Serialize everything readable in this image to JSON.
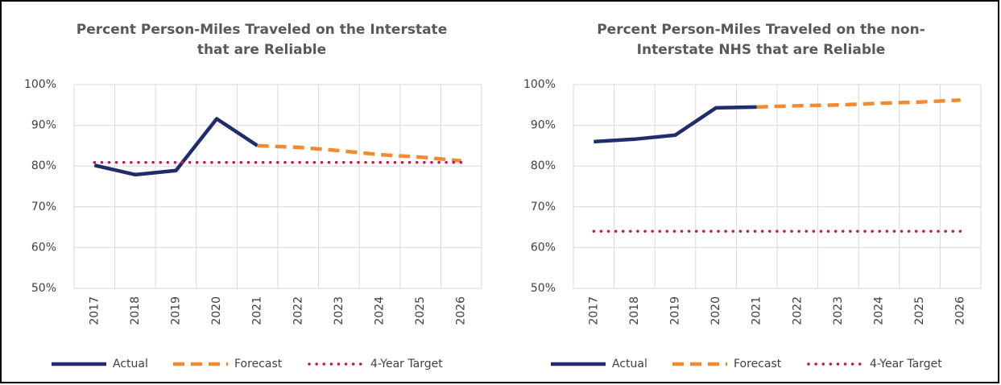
{
  "chart_data": [
    {
      "type": "line",
      "title": [
        "Percent Person-Miles Traveled on the Interstate",
        "that are Reliable"
      ],
      "categories": [
        "2017",
        "2018",
        "2019",
        "2020",
        "2021",
        "2022",
        "2023",
        "2024",
        "2025",
        "2026"
      ],
      "series": [
        {
          "name": "Actual",
          "color": "#1f2d6e",
          "style": "solid",
          "values": [
            80.2,
            77.9,
            78.9,
            91.6,
            85.0,
            null,
            null,
            null,
            null,
            null
          ]
        },
        {
          "name": "Forecast",
          "color": "#f28a30",
          "style": "dashed",
          "values": [
            null,
            null,
            null,
            null,
            85.0,
            84.6,
            83.8,
            82.8,
            82.2,
            81.3
          ]
        },
        {
          "name": "4-Year Target",
          "color": "#c8154a",
          "style": "dotted",
          "values": [
            80.9,
            80.9,
            80.9,
            80.9,
            80.9,
            80.9,
            80.9,
            80.9,
            80.9,
            80.9
          ]
        }
      ],
      "ylim": [
        50,
        100
      ],
      "yticks": [
        {
          "value": 50,
          "label": "50%"
        },
        {
          "value": 60,
          "label": "60%"
        },
        {
          "value": 70,
          "label": "70%"
        },
        {
          "value": 80,
          "label": "80%"
        },
        {
          "value": 90,
          "label": "90%"
        },
        {
          "value": 100,
          "label": "100%"
        }
      ],
      "grid": true,
      "legend": "bottom"
    },
    {
      "type": "line",
      "title": [
        "Percent Person-Miles Traveled on the non-",
        "Interstate NHS that are Reliable"
      ],
      "categories": [
        "2017",
        "2018",
        "2019",
        "2020",
        "2021",
        "2022",
        "2023",
        "2024",
        "2025",
        "2026"
      ],
      "series": [
        {
          "name": "Actual",
          "color": "#1f2d6e",
          "style": "solid",
          "values": [
            86.0,
            86.6,
            87.6,
            94.3,
            94.5,
            null,
            null,
            null,
            null,
            null
          ]
        },
        {
          "name": "Forecast",
          "color": "#f28a30",
          "style": "dashed",
          "values": [
            null,
            null,
            null,
            null,
            94.5,
            94.8,
            95.0,
            95.4,
            95.7,
            96.2
          ]
        },
        {
          "name": "4-Year Target",
          "color": "#c8154a",
          "style": "dotted",
          "values": [
            64.0,
            64.0,
            64.0,
            64.0,
            64.0,
            64.0,
            64.0,
            64.0,
            64.0,
            64.0
          ]
        }
      ],
      "ylim": [
        50,
        100
      ],
      "yticks": [
        {
          "value": 50,
          "label": "50%"
        },
        {
          "value": 60,
          "label": "60%"
        },
        {
          "value": 70,
          "label": "70%"
        },
        {
          "value": 80,
          "label": "80%"
        },
        {
          "value": 90,
          "label": "90%"
        },
        {
          "value": 100,
          "label": "100%"
        }
      ],
      "grid": true,
      "legend": "bottom"
    }
  ]
}
